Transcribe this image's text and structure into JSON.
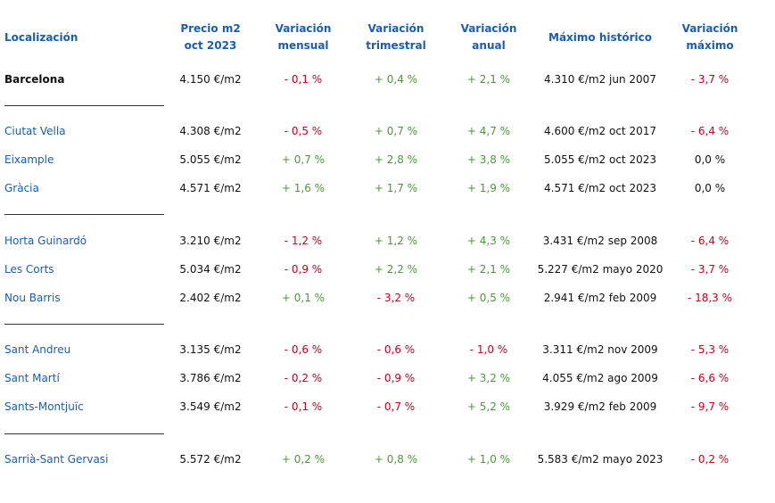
{
  "headers": [
    "Localización",
    "Precio m2\noct 2023",
    "Variación\nmensual",
    "Variación\ntrimestral",
    "Variación\nanual",
    "Máximo histórico",
    "Variación\nmáximo"
  ],
  "groups": [
    {
      "rows": [
        {
          "name": "Barcelona",
          "bold": true,
          "precio": "4.150 €/m2",
          "mensual": {
            "text": "- 0,1 %",
            "tone": "neg"
          },
          "trimestral": {
            "text": "+ 0,4 %",
            "tone": "pos"
          },
          "anual": {
            "text": "+ 2,1 %",
            "tone": "pos"
          },
          "maximo": "4.310 €/m2 jun 2007",
          "var_max": {
            "text": "- 3,7 %",
            "tone": "neg"
          }
        }
      ]
    },
    {
      "rows": [
        {
          "name": "Ciutat Vella",
          "precio": "4.308 €/m2",
          "mensual": {
            "text": "- 0,5 %",
            "tone": "neg"
          },
          "trimestral": {
            "text": "+ 0,7 %",
            "tone": "pos"
          },
          "anual": {
            "text": "+ 4,7 %",
            "tone": "pos"
          },
          "maximo": "4.600 €/m2 oct 2017",
          "var_max": {
            "text": "- 6,4 %",
            "tone": "neg"
          }
        },
        {
          "name": "Eixample",
          "precio": "5.055 €/m2",
          "mensual": {
            "text": "+ 0,7 %",
            "tone": "pos"
          },
          "trimestral": {
            "text": "+ 2,8 %",
            "tone": "pos"
          },
          "anual": {
            "text": "+ 3,8 %",
            "tone": "pos"
          },
          "maximo": "5.055 €/m2 oct 2023",
          "var_max": {
            "text": "0,0 %",
            "tone": "neu"
          }
        },
        {
          "name": "Gràcia",
          "precio": "4.571 €/m2",
          "mensual": {
            "text": "+ 1,6 %",
            "tone": "pos"
          },
          "trimestral": {
            "text": "+ 1,7 %",
            "tone": "pos"
          },
          "anual": {
            "text": "+ 1,9 %",
            "tone": "pos"
          },
          "maximo": "4.571 €/m2 oct 2023",
          "var_max": {
            "text": "0,0 %",
            "tone": "neu"
          }
        }
      ]
    },
    {
      "rows": [
        {
          "name": "Horta Guinardó",
          "precio": "3.210 €/m2",
          "mensual": {
            "text": "- 1,2 %",
            "tone": "neg"
          },
          "trimestral": {
            "text": "+ 1,2 %",
            "tone": "pos"
          },
          "anual": {
            "text": "+ 4,3 %",
            "tone": "pos"
          },
          "maximo": "3.431 €/m2 sep 2008",
          "var_max": {
            "text": "- 6,4 %",
            "tone": "neg"
          }
        },
        {
          "name": "Les Corts",
          "precio": "5.034 €/m2",
          "mensual": {
            "text": "- 0,9 %",
            "tone": "neg"
          },
          "trimestral": {
            "text": "+ 2,2 %",
            "tone": "pos"
          },
          "anual": {
            "text": "+ 2,1 %",
            "tone": "pos"
          },
          "maximo": "5.227 €/m2 mayo 2020",
          "var_max": {
            "text": "- 3,7 %",
            "tone": "neg"
          }
        },
        {
          "name": "Nou Barris",
          "precio": "2.402 €/m2",
          "mensual": {
            "text": "+ 0,1 %",
            "tone": "pos"
          },
          "trimestral": {
            "text": "- 3,2 %",
            "tone": "neg"
          },
          "anual": {
            "text": "+ 0,5 %",
            "tone": "pos"
          },
          "maximo": "2.941 €/m2 feb 2009",
          "var_max": {
            "text": "- 18,3 %",
            "tone": "neg"
          }
        }
      ]
    },
    {
      "rows": [
        {
          "name": "Sant Andreu",
          "precio": "3.135 €/m2",
          "mensual": {
            "text": "- 0,6 %",
            "tone": "neg"
          },
          "trimestral": {
            "text": "- 0,6 %",
            "tone": "neg"
          },
          "anual": {
            "text": "- 1,0 %",
            "tone": "neg"
          },
          "maximo": "3.311 €/m2 nov 2009",
          "var_max": {
            "text": "- 5,3 %",
            "tone": "neg"
          }
        },
        {
          "name": "Sant Martí",
          "precio": "3.786 €/m2",
          "mensual": {
            "text": "- 0,2 %",
            "tone": "neg"
          },
          "trimestral": {
            "text": "- 0,9 %",
            "tone": "neg"
          },
          "anual": {
            "text": "+ 3,2 %",
            "tone": "pos"
          },
          "maximo": "4.055 €/m2 ago 2009",
          "var_max": {
            "text": "- 6,6 %",
            "tone": "neg"
          }
        },
        {
          "name": "Sants-Montjuïc",
          "precio": "3.549 €/m2",
          "mensual": {
            "text": "- 0,1 %",
            "tone": "neg"
          },
          "trimestral": {
            "text": "- 0,7 %",
            "tone": "neg"
          },
          "anual": {
            "text": "+ 5,2 %",
            "tone": "pos"
          },
          "maximo": "3.929 €/m2 feb 2009",
          "var_max": {
            "text": "- 9,7 %",
            "tone": "neg"
          }
        }
      ]
    },
    {
      "rows": [
        {
          "name": "Sarrià-Sant Gervasi",
          "precio": "5.572 €/m2",
          "mensual": {
            "text": "+ 0,2 %",
            "tone": "pos"
          },
          "trimestral": {
            "text": "+ 0,8 %",
            "tone": "pos"
          },
          "anual": {
            "text": "+ 1,0 %",
            "tone": "pos"
          },
          "maximo": "5.583 €/m2 mayo 2023",
          "var_max": {
            "text": "- 0,2 %",
            "tone": "neg"
          }
        }
      ]
    }
  ],
  "colors": {
    "header": "#1a5db0",
    "district": "#1a5db0",
    "positive": "#4a9a3a",
    "negative": "#c4001a",
    "neutral": "#111111"
  }
}
